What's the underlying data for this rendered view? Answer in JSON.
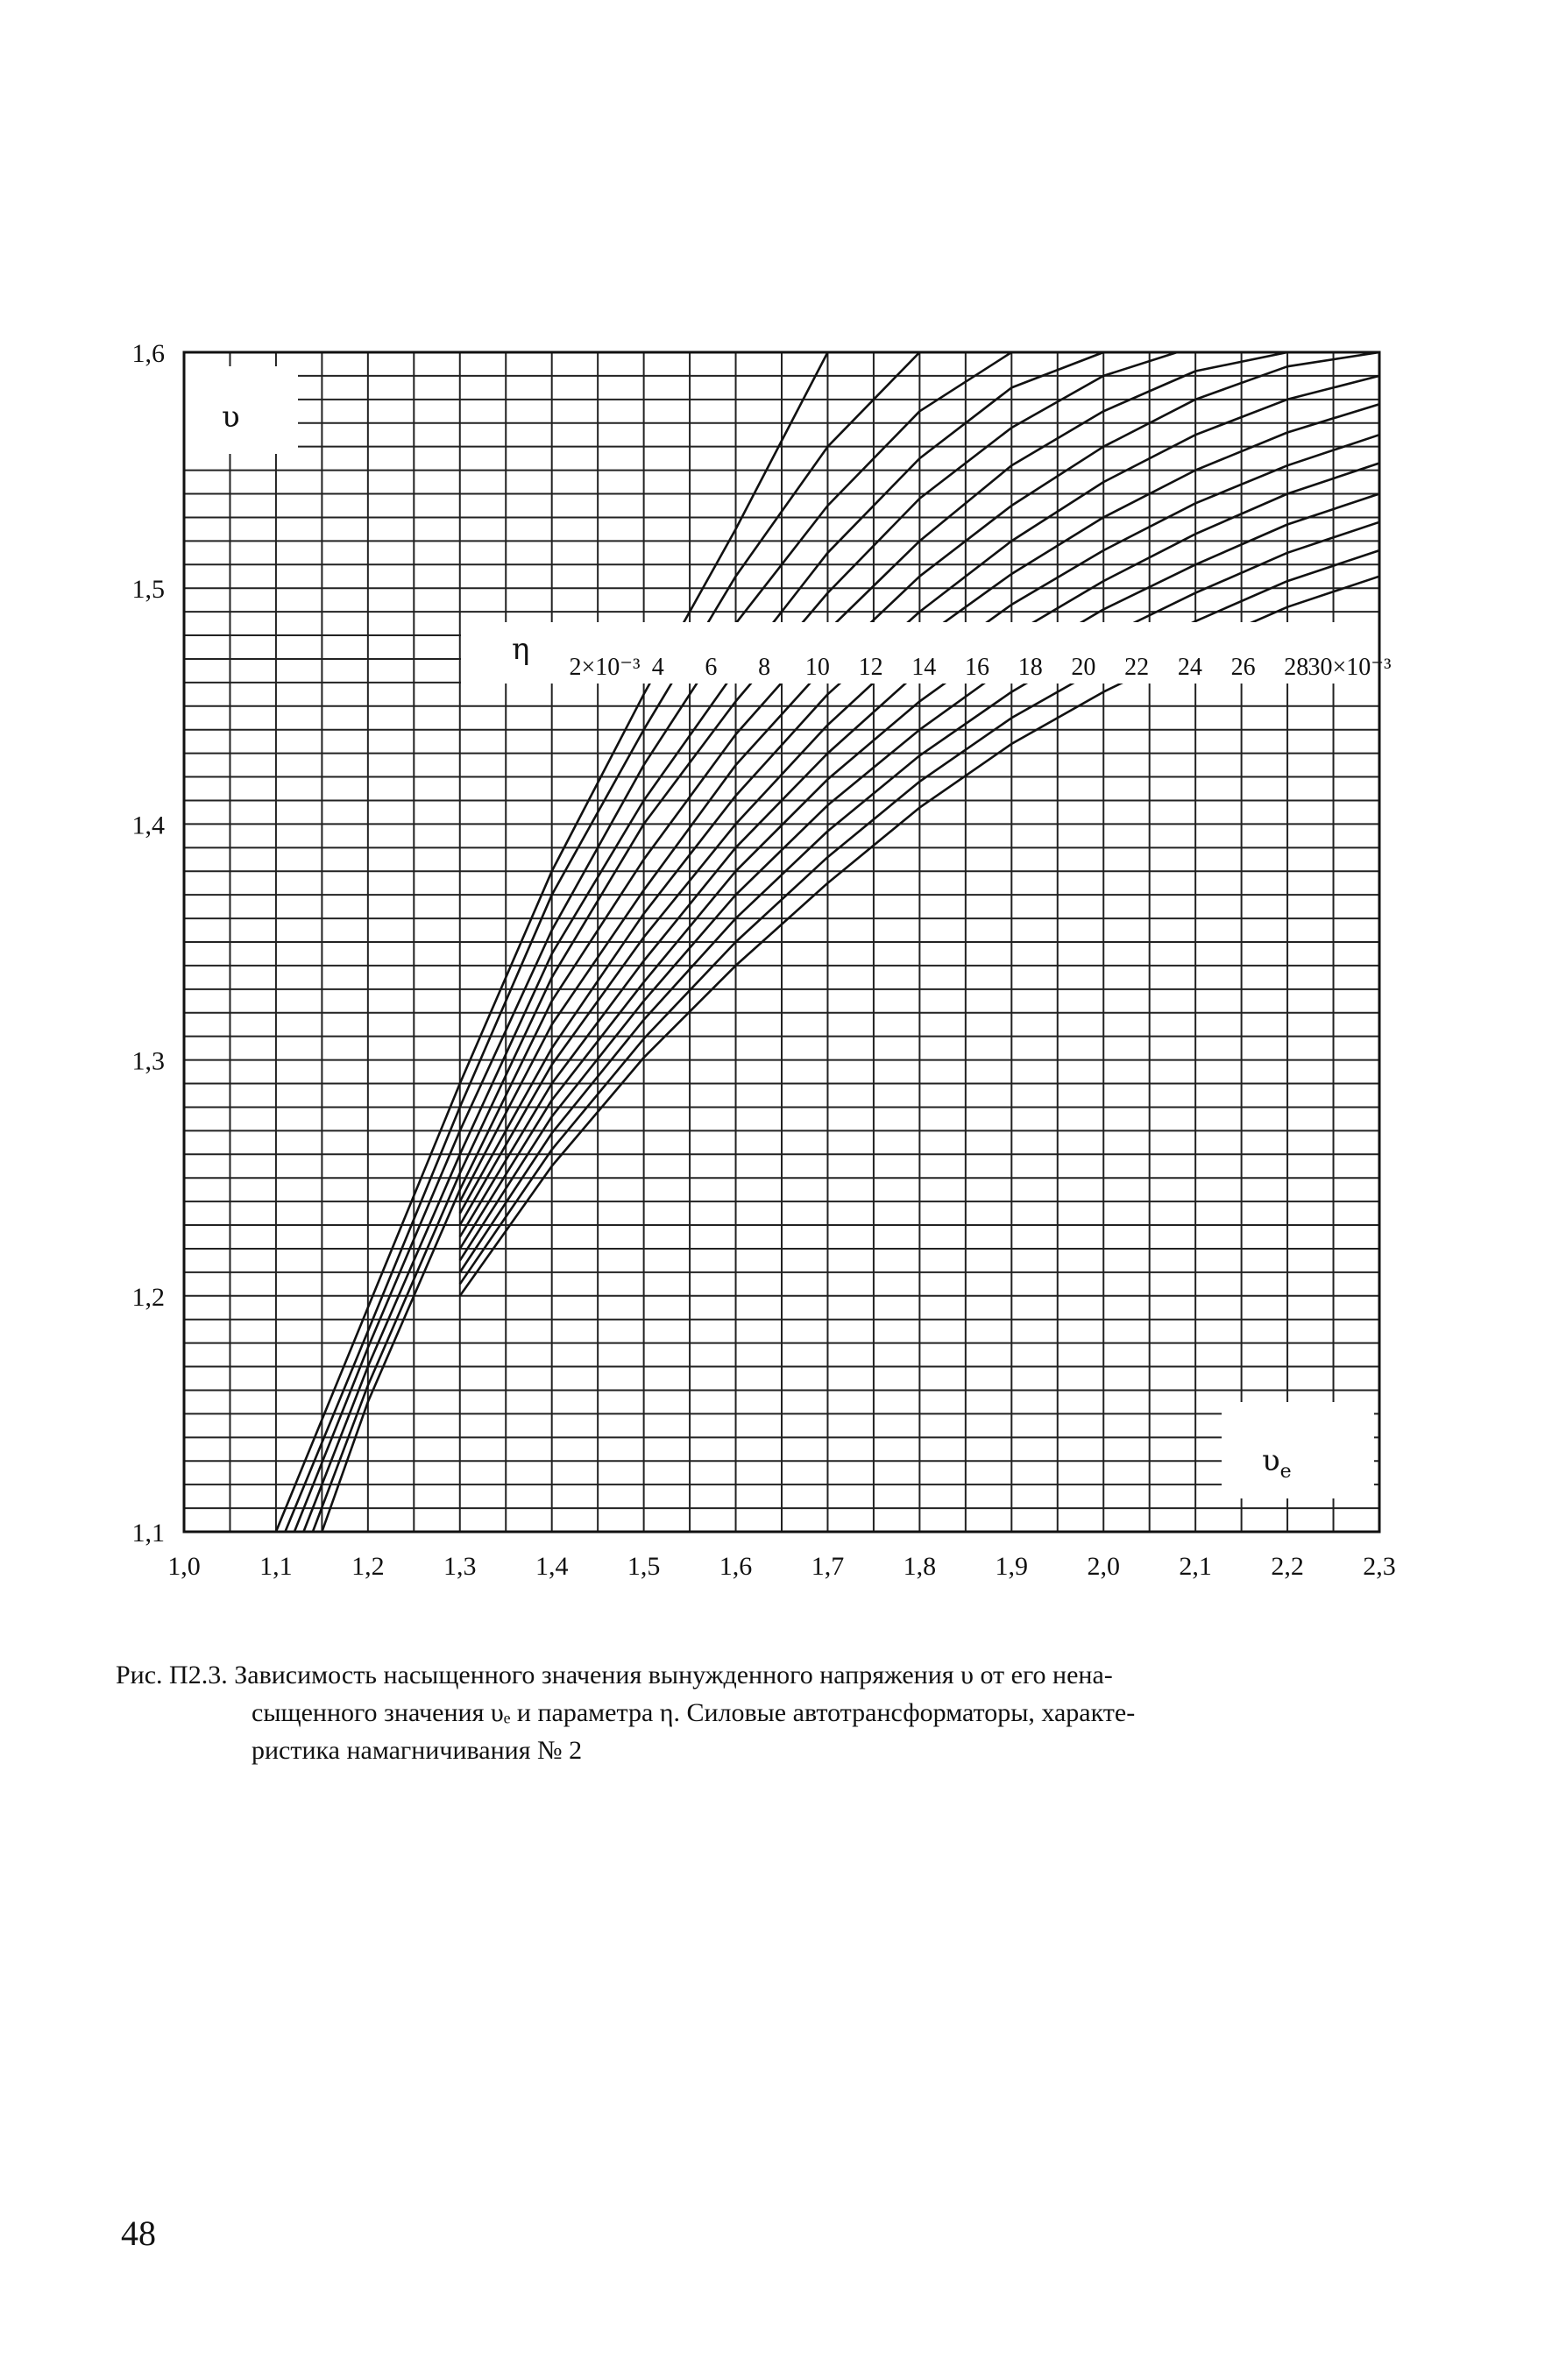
{
  "chart_data": {
    "type": "line",
    "xlabel": "υ",
    "xlabel_sub": "e",
    "ylabel": "υ",
    "xlim": [
      1.0,
      2.3
    ],
    "ylim": [
      1.1,
      1.6
    ],
    "x_ticks": [
      "1,0",
      "1,1",
      "1,2",
      "1,3",
      "1,4",
      "1,5",
      "1,6",
      "1,7",
      "1,8",
      "1,9",
      "2,0",
      "2,1",
      "2,2",
      "2,3"
    ],
    "y_ticks": [
      "1,1",
      "1,2",
      "1,3",
      "1,4",
      "1,5",
      "1,6"
    ],
    "grid": true,
    "parameter_symbol": "η",
    "parameter_labels": [
      "2×10⁻³",
      "4",
      "6",
      "8",
      "10",
      "12",
      "14",
      "16",
      "18",
      "20",
      "22",
      "24",
      "26",
      "28",
      "30×10⁻³"
    ],
    "series": [
      {
        "name": "2×10⁻³",
        "points": [
          [
            1.1,
            1.1
          ],
          [
            1.2,
            1.195
          ],
          [
            1.3,
            1.29
          ],
          [
            1.4,
            1.38
          ],
          [
            1.5,
            1.455
          ],
          [
            1.6,
            1.525
          ],
          [
            1.7,
            1.6
          ]
        ]
      },
      {
        "name": "4",
        "points": [
          [
            1.11,
            1.1
          ],
          [
            1.2,
            1.185
          ],
          [
            1.3,
            1.28
          ],
          [
            1.4,
            1.37
          ],
          [
            1.5,
            1.44
          ],
          [
            1.6,
            1.505
          ],
          [
            1.7,
            1.56
          ],
          [
            1.8,
            1.6
          ]
        ]
      },
      {
        "name": "6",
        "points": [
          [
            1.12,
            1.1
          ],
          [
            1.2,
            1.178
          ],
          [
            1.3,
            1.27
          ],
          [
            1.4,
            1.355
          ],
          [
            1.5,
            1.425
          ],
          [
            1.6,
            1.485
          ],
          [
            1.7,
            1.535
          ],
          [
            1.8,
            1.575
          ],
          [
            1.9,
            1.6
          ]
        ]
      },
      {
        "name": "8",
        "points": [
          [
            1.13,
            1.1
          ],
          [
            1.2,
            1.17
          ],
          [
            1.3,
            1.26
          ],
          [
            1.4,
            1.345
          ],
          [
            1.5,
            1.41
          ],
          [
            1.6,
            1.465
          ],
          [
            1.7,
            1.515
          ],
          [
            1.8,
            1.555
          ],
          [
            1.9,
            1.585
          ],
          [
            2.0,
            1.6
          ]
        ]
      },
      {
        "name": "10",
        "points": [
          [
            1.14,
            1.1
          ],
          [
            1.2,
            1.162
          ],
          [
            1.3,
            1.252
          ],
          [
            1.4,
            1.335
          ],
          [
            1.5,
            1.4
          ],
          [
            1.6,
            1.452
          ],
          [
            1.7,
            1.498
          ],
          [
            1.8,
            1.538
          ],
          [
            1.9,
            1.568
          ],
          [
            2.0,
            1.59
          ],
          [
            2.08,
            1.6
          ]
        ]
      },
      {
        "name": "12",
        "points": [
          [
            1.15,
            1.1
          ],
          [
            1.2,
            1.155
          ],
          [
            1.3,
            1.245
          ],
          [
            1.4,
            1.325
          ],
          [
            1.5,
            1.385
          ],
          [
            1.6,
            1.438
          ],
          [
            1.7,
            1.482
          ],
          [
            1.8,
            1.52
          ],
          [
            1.9,
            1.552
          ],
          [
            2.0,
            1.575
          ],
          [
            2.1,
            1.592
          ],
          [
            2.2,
            1.6
          ]
        ]
      },
      {
        "name": "14",
        "points": [
          [
            1.3,
            1.24
          ],
          [
            1.4,
            1.315
          ],
          [
            1.5,
            1.372
          ],
          [
            1.6,
            1.425
          ],
          [
            1.7,
            1.468
          ],
          [
            1.8,
            1.505
          ],
          [
            1.9,
            1.535
          ],
          [
            2.0,
            1.56
          ],
          [
            2.1,
            1.58
          ],
          [
            2.2,
            1.594
          ],
          [
            2.3,
            1.6
          ]
        ]
      },
      {
        "name": "16",
        "points": [
          [
            1.3,
            1.235
          ],
          [
            1.4,
            1.305
          ],
          [
            1.5,
            1.362
          ],
          [
            1.6,
            1.412
          ],
          [
            1.7,
            1.455
          ],
          [
            1.8,
            1.49
          ],
          [
            1.9,
            1.52
          ],
          [
            2.0,
            1.545
          ],
          [
            2.1,
            1.565
          ],
          [
            2.2,
            1.58
          ],
          [
            2.3,
            1.59
          ]
        ]
      },
      {
        "name": "18",
        "points": [
          [
            1.3,
            1.23
          ],
          [
            1.4,
            1.298
          ],
          [
            1.5,
            1.352
          ],
          [
            1.6,
            1.4
          ],
          [
            1.7,
            1.442
          ],
          [
            1.8,
            1.478
          ],
          [
            1.9,
            1.506
          ],
          [
            2.0,
            1.53
          ],
          [
            2.1,
            1.55
          ],
          [
            2.2,
            1.566
          ],
          [
            2.3,
            1.578
          ]
        ]
      },
      {
        "name": "20",
        "points": [
          [
            1.3,
            1.225
          ],
          [
            1.4,
            1.29
          ],
          [
            1.5,
            1.342
          ],
          [
            1.6,
            1.39
          ],
          [
            1.7,
            1.43
          ],
          [
            1.8,
            1.465
          ],
          [
            1.9,
            1.493
          ],
          [
            2.0,
            1.516
          ],
          [
            2.1,
            1.536
          ],
          [
            2.2,
            1.552
          ],
          [
            2.3,
            1.565
          ]
        ]
      },
      {
        "name": "22",
        "points": [
          [
            1.3,
            1.22
          ],
          [
            1.4,
            1.283
          ],
          [
            1.5,
            1.333
          ],
          [
            1.6,
            1.38
          ],
          [
            1.7,
            1.419
          ],
          [
            1.8,
            1.452
          ],
          [
            1.9,
            1.48
          ],
          [
            2.0,
            1.503
          ],
          [
            2.1,
            1.523
          ],
          [
            2.2,
            1.54
          ],
          [
            2.3,
            1.553
          ]
        ]
      },
      {
        "name": "24",
        "points": [
          [
            1.3,
            1.215
          ],
          [
            1.4,
            1.276
          ],
          [
            1.5,
            1.325
          ],
          [
            1.6,
            1.37
          ],
          [
            1.7,
            1.408
          ],
          [
            1.8,
            1.44
          ],
          [
            1.9,
            1.468
          ],
          [
            2.0,
            1.491
          ],
          [
            2.1,
            1.51
          ],
          [
            2.2,
            1.527
          ],
          [
            2.3,
            1.54
          ]
        ]
      },
      {
        "name": "26",
        "points": [
          [
            1.3,
            1.21
          ],
          [
            1.4,
            1.269
          ],
          [
            1.5,
            1.317
          ],
          [
            1.6,
            1.36
          ],
          [
            1.7,
            1.397
          ],
          [
            1.8,
            1.429
          ],
          [
            1.9,
            1.456
          ],
          [
            2.0,
            1.479
          ],
          [
            2.1,
            1.498
          ],
          [
            2.2,
            1.515
          ],
          [
            2.3,
            1.528
          ]
        ]
      },
      {
        "name": "28",
        "points": [
          [
            1.3,
            1.205
          ],
          [
            1.4,
            1.262
          ],
          [
            1.5,
            1.309
          ],
          [
            1.6,
            1.35
          ],
          [
            1.7,
            1.386
          ],
          [
            1.8,
            1.418
          ],
          [
            1.9,
            1.445
          ],
          [
            2.0,
            1.467
          ],
          [
            2.1,
            1.486
          ],
          [
            2.2,
            1.503
          ],
          [
            2.3,
            1.516
          ]
        ]
      },
      {
        "name": "30×10⁻³",
        "points": [
          [
            1.3,
            1.2
          ],
          [
            1.4,
            1.255
          ],
          [
            1.5,
            1.301
          ],
          [
            1.6,
            1.34
          ],
          [
            1.7,
            1.375
          ],
          [
            1.8,
            1.407
          ],
          [
            1.9,
            1.434
          ],
          [
            2.0,
            1.456
          ],
          [
            2.1,
            1.475
          ],
          [
            2.2,
            1.492
          ],
          [
            2.3,
            1.505
          ]
        ]
      }
    ]
  },
  "caption": {
    "line1": "Рис. П2.3. Зависимость насыщенного значения вынужденного напряжения υ от его нена-",
    "line2": "сыщенного значения υₑ и параметра η. Силовые автотрансформаторы, характе-",
    "line3": "ристика намагничивания № 2"
  },
  "page_number": "48"
}
